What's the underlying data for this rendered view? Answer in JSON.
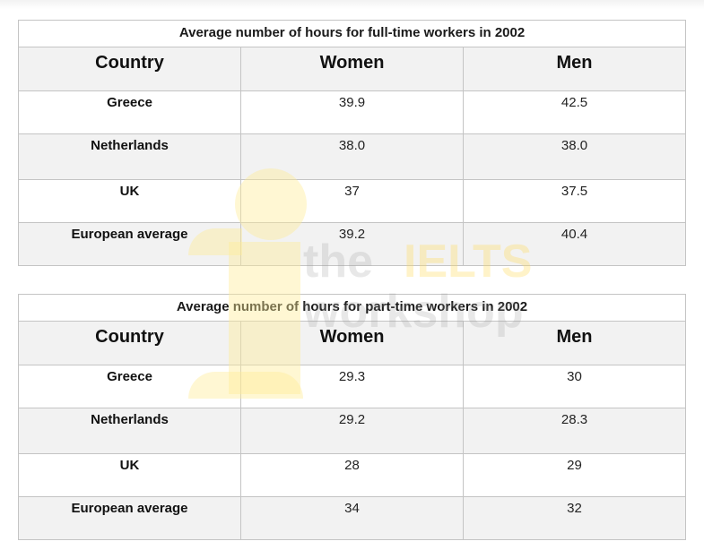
{
  "tables": [
    {
      "title": "Average number of hours for full-time workers in 2002",
      "headers": [
        "Country",
        "Women",
        "Men"
      ],
      "rows": [
        {
          "country": "Greece",
          "women": "39.9",
          "men": "42.5"
        },
        {
          "country": "Netherlands",
          "women": "38.0",
          "men": "38.0"
        },
        {
          "country": "UK",
          "women": "37",
          "men": "37.5"
        },
        {
          "country": "European average",
          "women": "39.2",
          "men": "40.4"
        }
      ]
    },
    {
      "title": "Average number of hours for part-time workers in 2002",
      "headers": [
        "Country",
        "Women",
        "Men"
      ],
      "rows": [
        {
          "country": "Greece",
          "women": "29.3",
          "men": "30"
        },
        {
          "country": "Netherlands",
          "women": "29.2",
          "men": "28.3"
        },
        {
          "country": "UK",
          "women": "28",
          "men": "29"
        },
        {
          "country": "European average",
          "women": "34",
          "men": "32"
        }
      ]
    }
  ],
  "watermark": {
    "word1": "the",
    "word2": "IELTS",
    "word3": "workshop"
  },
  "colors": {
    "header_bg": "#f2f2f2",
    "alt_row_bg": "#f2f2f2",
    "border": "#c4c4c4",
    "watermark_yellow": "#ffec96"
  }
}
